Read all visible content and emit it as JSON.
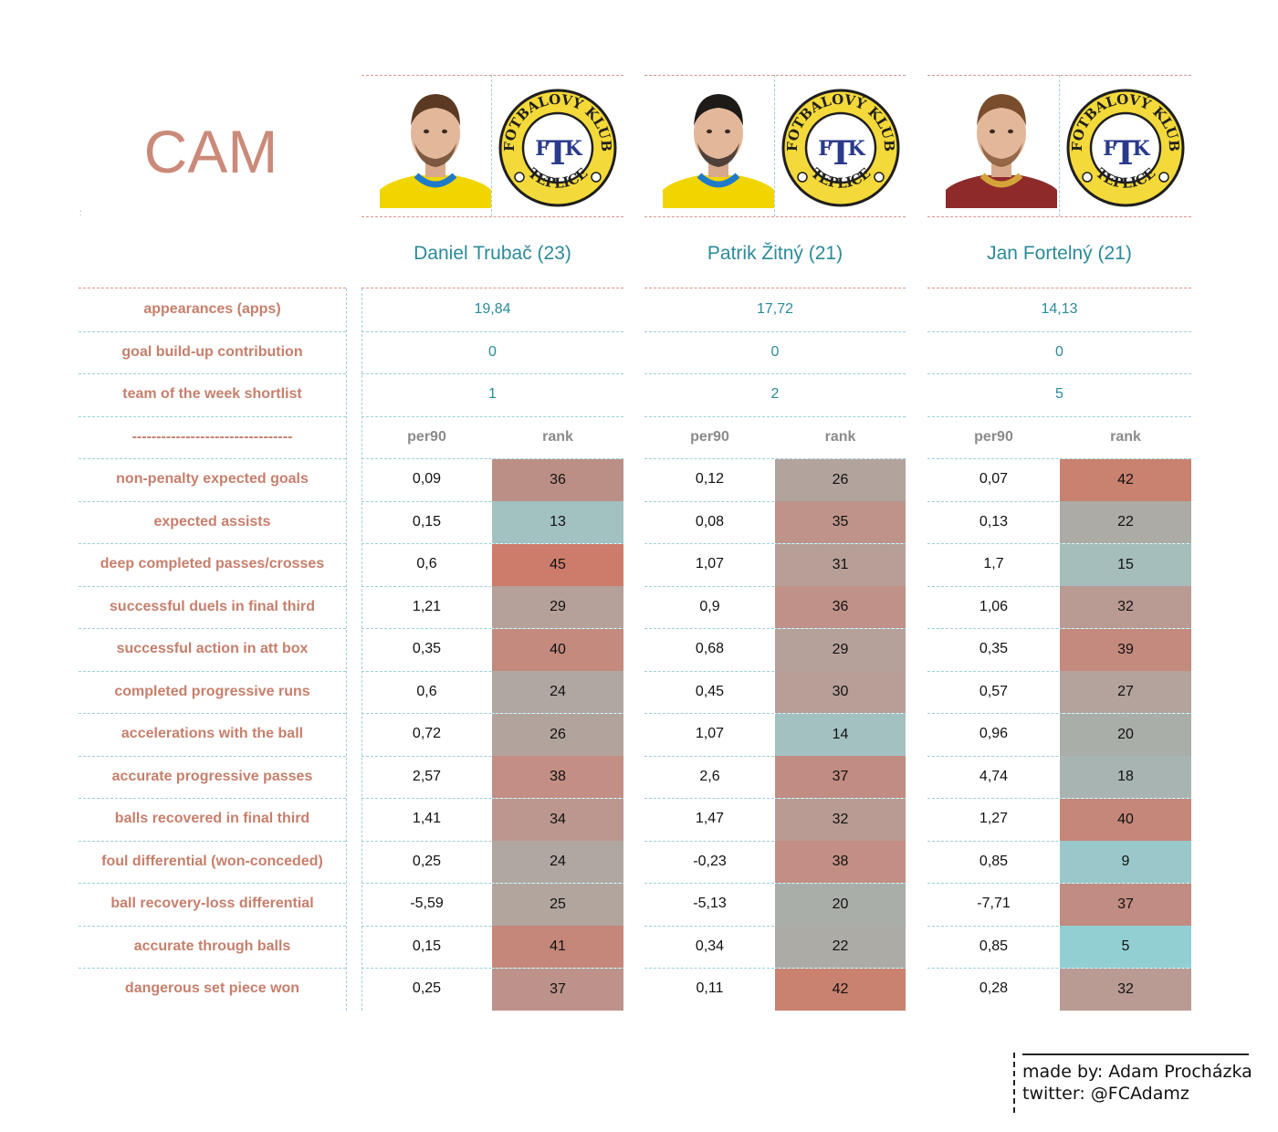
{
  "title": "CAM",
  "tiny_mark": ":",
  "players": [
    {
      "name": "Daniel Trubač (23)",
      "photo_icon": "player-headshot-yellow-jersey",
      "logo_icon": "fk-teplice-crest",
      "apps": "19,84",
      "goal_buildup": "0",
      "totw": "1",
      "jersey": "#f1d500",
      "collar": "#1f7ac9",
      "hair": "#5a3a22",
      "stats": [
        {
          "per90": "0,09",
          "rank": "36",
          "color": "#bc8f86"
        },
        {
          "per90": "0,15",
          "rank": "13",
          "color": "#a2c1c1"
        },
        {
          "per90": "0,6",
          "rank": "45",
          "color": "#cd7c6b"
        },
        {
          "per90": "1,21",
          "rank": "29",
          "color": "#b6a19a"
        },
        {
          "per90": "0,35",
          "rank": "40",
          "color": "#c48a7d"
        },
        {
          "per90": "0,6",
          "rank": "24",
          "color": "#b0a7a0"
        },
        {
          "per90": "0,72",
          "rank": "26",
          "color": "#b2a39c"
        },
        {
          "per90": "2,57",
          "rank": "38",
          "color": "#c38e83"
        },
        {
          "per90": "1,41",
          "rank": "34",
          "color": "#bc9790"
        },
        {
          "per90": "0,25",
          "rank": "24",
          "color": "#b0a7a0"
        },
        {
          "per90": "-5,59",
          "rank": "25",
          "color": "#b1a59e"
        },
        {
          "per90": "0,15",
          "rank": "41",
          "color": "#c5877a"
        },
        {
          "per90": "0,25",
          "rank": "37",
          "color": "#bd928a"
        }
      ]
    },
    {
      "name": "Patrik Žitný (21)",
      "photo_icon": "player-headshot-yellow-jersey",
      "logo_icon": "fk-teplice-crest",
      "apps": "17,72",
      "goal_buildup": "0",
      "totw": "2",
      "jersey": "#f1d500",
      "collar": "#1f7ac9",
      "hair": "#1d1a18",
      "stats": [
        {
          "per90": "0,12",
          "rank": "26",
          "color": "#b2a39c"
        },
        {
          "per90": "0,08",
          "rank": "35",
          "color": "#bd938a"
        },
        {
          "per90": "1,07",
          "rank": "31",
          "color": "#b79e96"
        },
        {
          "per90": "0,9",
          "rank": "36",
          "color": "#bf9189"
        },
        {
          "per90": "0,68",
          "rank": "29",
          "color": "#b6a19a"
        },
        {
          "per90": "0,45",
          "rank": "30",
          "color": "#b79f98"
        },
        {
          "per90": "1,07",
          "rank": "14",
          "color": "#a3c1c1"
        },
        {
          "per90": "2,6",
          "rank": "37",
          "color": "#c18c82"
        },
        {
          "per90": "1,47",
          "rank": "32",
          "color": "#b99b94"
        },
        {
          "per90": "-0,23",
          "rank": "38",
          "color": "#c38e83"
        },
        {
          "per90": "-5,13",
          "rank": "20",
          "color": "#aaaea8"
        },
        {
          "per90": "0,34",
          "rank": "22",
          "color": "#acaba5"
        },
        {
          "per90": "0,11",
          "rank": "42",
          "color": "#c8826f"
        }
      ]
    },
    {
      "name": "Jan Fortelný (21)",
      "photo_icon": "player-headshot-maroon-jersey",
      "logo_icon": "fk-teplice-crest",
      "apps": "14,13",
      "goal_buildup": "0",
      "totw": "5",
      "jersey": "#8f2a2b",
      "collar": "#d4a33a",
      "hair": "#7a4d2c",
      "stats": [
        {
          "per90": "0,07",
          "rank": "42",
          "color": "#c8826f"
        },
        {
          "per90": "0,13",
          "rank": "22",
          "color": "#acaba5"
        },
        {
          "per90": "1,7",
          "rank": "15",
          "color": "#a5bdbb"
        },
        {
          "per90": "1,06",
          "rank": "32",
          "color": "#b99b94"
        },
        {
          "per90": "0,35",
          "rank": "39",
          "color": "#c48a7d"
        },
        {
          "per90": "0,57",
          "rank": "27",
          "color": "#b3a39c"
        },
        {
          "per90": "0,96",
          "rank": "20",
          "color": "#aaaea8"
        },
        {
          "per90": "4,74",
          "rank": "18",
          "color": "#a8b4b1"
        },
        {
          "per90": "1,27",
          "rank": "40",
          "color": "#c5877a"
        },
        {
          "per90": "0,85",
          "rank": "9",
          "color": "#9ac8ca"
        },
        {
          "per90": "-7,71",
          "rank": "37",
          "color": "#c18c82"
        },
        {
          "per90": "0,85",
          "rank": "5",
          "color": "#92cfd3"
        },
        {
          "per90": "0,28",
          "rank": "32",
          "color": "#b99b94"
        }
      ]
    }
  ],
  "summary_labels": [
    "appearances (apps)",
    "goal build-up contribution",
    "team of the week shortlist"
  ],
  "divider_label": "---------------------------------",
  "col_headers": {
    "per90": "per90",
    "rank": "rank"
  },
  "stat_labels": [
    "non-penalty expected goals",
    "expected assists",
    "deep completed passes/crosses",
    "successful duels in final third",
    "successful action in att box",
    "completed progressive runs",
    "accelerations with the ball",
    "accurate progressive passes",
    "balls recovered in final third",
    "foul differential (won-conceded)",
    "ball recovery-loss differential",
    "accurate through balls",
    "dangerous set piece won"
  ],
  "logo_text": {
    "top": "FOTBALOVÝ KLUB",
    "bottom": "TEPLICE",
    "mono_left": "F",
    "mono_mid": "T",
    "mono_right": "K"
  },
  "credit": {
    "made_by": "made by: Adam Procházka",
    "twitter": "twitter: @FCAdamz"
  }
}
